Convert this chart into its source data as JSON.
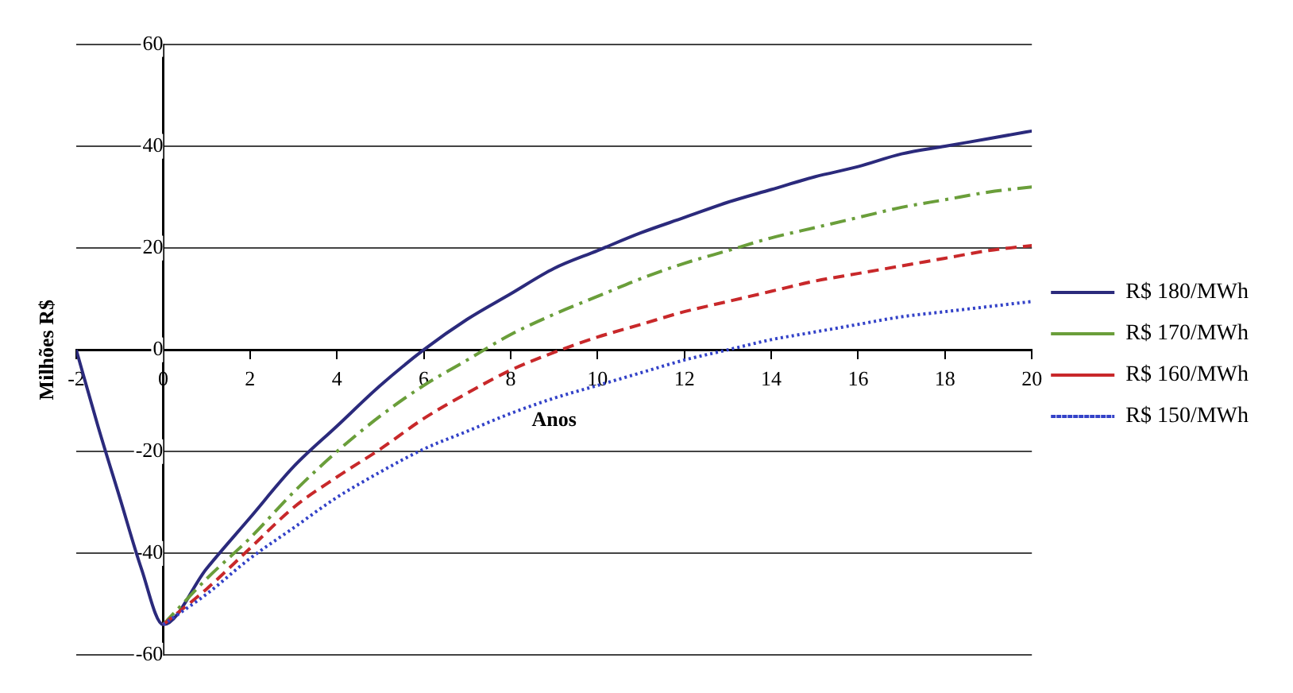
{
  "chart_data": {
    "type": "line",
    "xlabel": "Anos",
    "ylabel": "Milhões R$",
    "x": [
      -2,
      -1.5,
      -1,
      -0.5,
      0,
      1,
      2,
      3,
      4,
      5,
      6,
      7,
      8,
      9,
      10,
      11,
      12,
      13,
      14,
      15,
      16,
      17,
      18,
      19,
      20
    ],
    "series": [
      {
        "name": "R$ 180/MWh",
        "color": "#2b2a7c",
        "line_style": "solid",
        "values": [
          0,
          -15,
          -29,
          -43,
          -54,
          -43,
          -33,
          -23,
          -15,
          -7,
          0,
          6,
          11,
          16,
          19.5,
          23,
          26,
          29,
          31.5,
          34,
          36,
          38.5,
          40,
          41.5,
          43
        ]
      },
      {
        "name": "R$ 170/MWh",
        "color": "#6a9e3a",
        "line_style": "dashdot",
        "values": [
          null,
          null,
          null,
          null,
          -54,
          -45,
          -37,
          -28,
          -20,
          -13,
          -7,
          -2,
          3,
          7,
          10.5,
          14,
          17,
          19.5,
          22,
          24,
          26,
          28,
          29.5,
          31,
          32
        ]
      },
      {
        "name": "R$ 160/MWh",
        "color": "#c8282a",
        "line_style": "dashed",
        "values": [
          null,
          null,
          null,
          null,
          -54,
          -47,
          -39,
          -31,
          -25,
          -19.5,
          -13.5,
          -8.5,
          -4,
          -0.5,
          2.5,
          5,
          7.5,
          9.5,
          11.5,
          13.5,
          15,
          16.5,
          18,
          19.5,
          20.5
        ]
      },
      {
        "name": "R$ 150/MWh",
        "color": "#3342c8",
        "line_style": "dotted",
        "values": [
          null,
          null,
          null,
          null,
          -54,
          -48,
          -41,
          -35,
          -29,
          -24,
          -19.5,
          -16,
          -12.5,
          -9.5,
          -7,
          -4.5,
          -2,
          0,
          2,
          3.5,
          5,
          6.5,
          7.5,
          8.5,
          9.5
        ]
      }
    ],
    "xlim": [
      -2,
      20
    ],
    "xticks": [
      -2,
      0,
      2,
      4,
      6,
      8,
      10,
      12,
      14,
      16,
      18,
      20
    ],
    "ylim": [
      -60,
      60
    ],
    "yticks": [
      -60,
      -40,
      -20,
      0,
      20,
      40,
      60
    ],
    "grid": "y",
    "legend": "right",
    "marker": "none"
  }
}
